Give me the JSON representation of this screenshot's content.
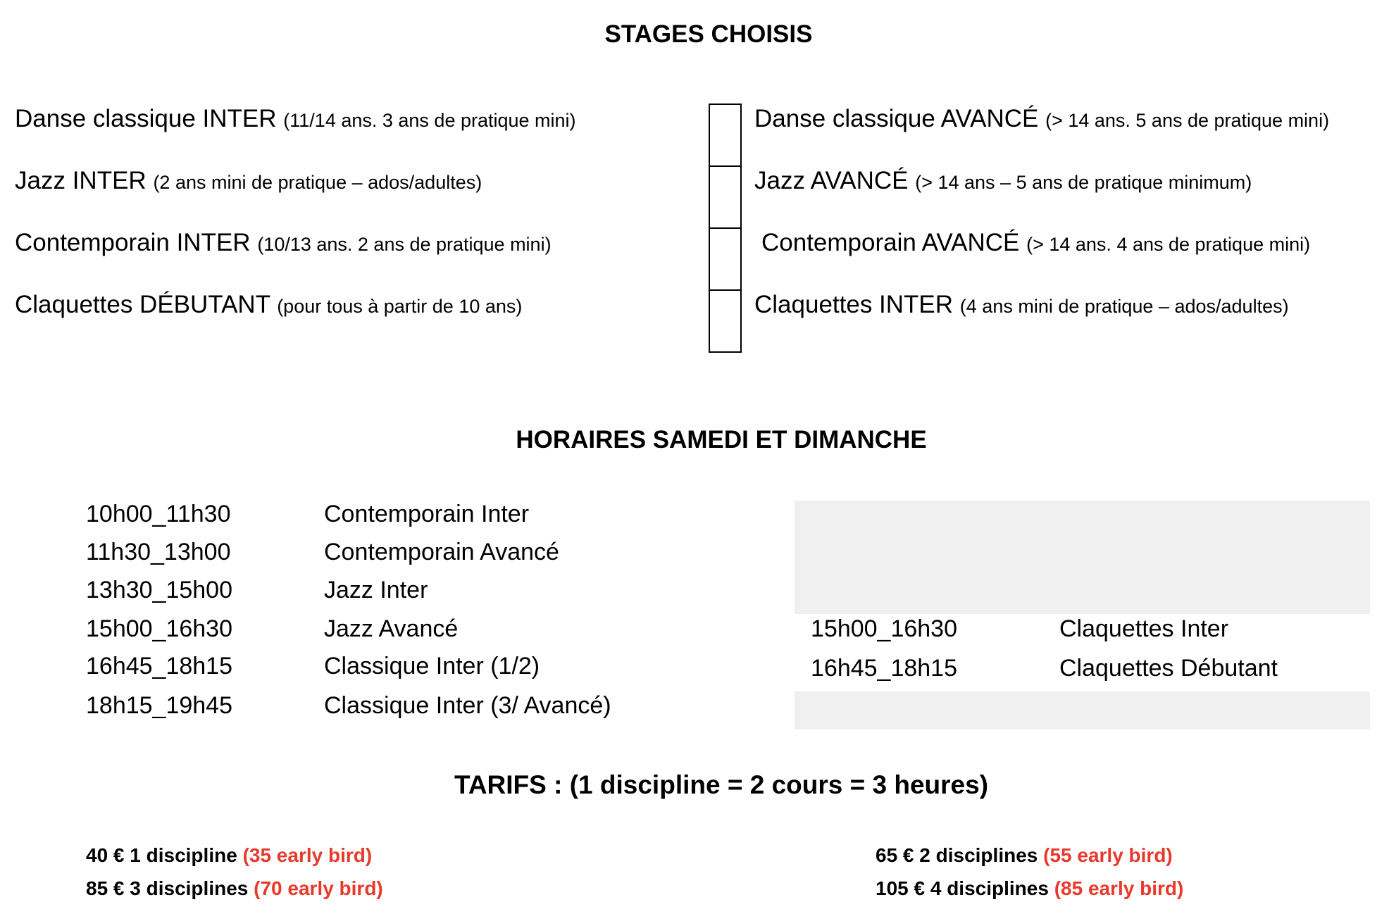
{
  "stages": {
    "title": "STAGES CHOISIS",
    "left": [
      {
        "name": "Danse classique INTER",
        "note": "(11/14 ans. 3 ans de pratique mini)"
      },
      {
        "name": "Jazz INTER",
        "note": "(2 ans mini de pratique – ados/adultes)"
      },
      {
        "name": "Contemporain INTER",
        "note": "(10/13 ans. 2 ans de pratique mini)"
      },
      {
        "name": "Claquettes DÉBUTANT",
        "note": "(pour tous à partir de 10 ans)"
      }
    ],
    "right": [
      {
        "name": "Danse classique AVANCÉ",
        "note": "(> 14 ans. 5 ans de pratique mini)"
      },
      {
        "name": "Jazz AVANCÉ",
        "note": "(> 14 ans – 5 ans de pratique minimum)"
      },
      {
        "name": "Contemporain AVANCÉ",
        "note": "(> 14 ans. 4 ans de pratique mini)"
      },
      {
        "name": "Claquettes INTER",
        "note": "(4 ans mini de pratique – ados/adultes)"
      }
    ]
  },
  "horaires": {
    "title": "HORAIRES SAMEDI ET DIMANCHE",
    "left": [
      {
        "time": "10h00_11h30",
        "course": "Contemporain Inter"
      },
      {
        "time": "11h30_13h00",
        "course": "Contemporain Avancé"
      },
      {
        "time": "13h30_15h00",
        "course": "Jazz Inter"
      },
      {
        "time": "15h00_16h30",
        "course": "Jazz Avancé"
      },
      {
        "time": "16h45_18h15",
        "course": "Classique Inter (1/2)"
      },
      {
        "time": "18h15_19h45",
        "course": "Classique Inter (3/ Avancé)"
      }
    ],
    "right": [
      {
        "time": "15h00_16h30",
        "course": "Claquettes Inter"
      },
      {
        "time": "16h45_18h15",
        "course": "Claquettes Débutant"
      }
    ]
  },
  "tarifs": {
    "title": "TARIFS : (1 discipline = 2 cours = 3 heures)",
    "items": [
      {
        "price": "40 € 1 discipline",
        "early": "(35 early bird)"
      },
      {
        "price": "85 € 3 disciplines",
        "early": "(70 early bird)"
      },
      {
        "price": "65 € 2 disciplines",
        "early": "(55 early bird)"
      },
      {
        "price": "105 € 4 disciplines",
        "early": "(85 early bird)"
      }
    ],
    "early_color": "#e8392b"
  }
}
